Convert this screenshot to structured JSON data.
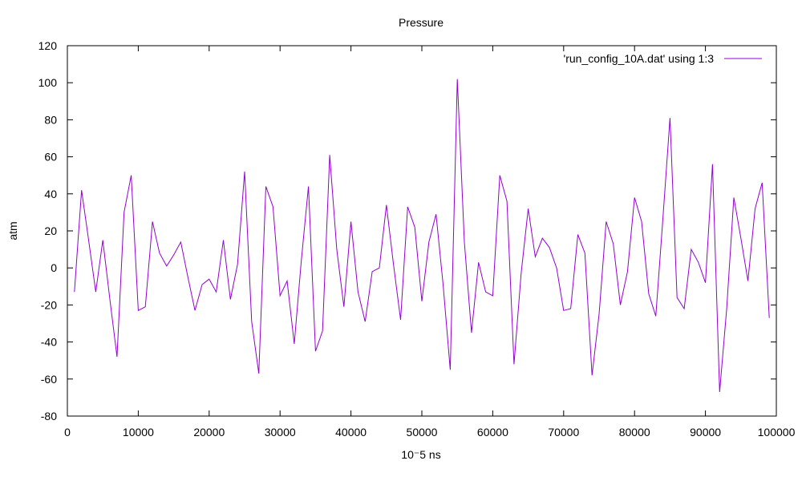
{
  "chart_data": {
    "type": "line",
    "title": "Pressure",
    "xlabel": "10⁻5 ns",
    "ylabel": "atm",
    "xlim": [
      0,
      100000
    ],
    "ylim": [
      -80,
      120
    ],
    "xticks": [
      0,
      10000,
      20000,
      30000,
      40000,
      50000,
      60000,
      70000,
      80000,
      90000,
      100000
    ],
    "yticks": [
      -80,
      -60,
      -40,
      -20,
      0,
      20,
      40,
      60,
      80,
      100,
      120
    ],
    "grid": false,
    "legend_position": "top-right",
    "series": [
      {
        "name": "'run_config_10A.dat' using 1:3",
        "color": "#9400d3",
        "x": [
          1000,
          2000,
          3000,
          4000,
          5000,
          6000,
          7000,
          8000,
          9000,
          10000,
          11000,
          12000,
          13000,
          14000,
          15000,
          16000,
          17000,
          18000,
          19000,
          20000,
          21000,
          22000,
          23000,
          24000,
          25000,
          26000,
          27000,
          28000,
          29000,
          30000,
          31000,
          32000,
          33000,
          34000,
          35000,
          36000,
          37000,
          38000,
          39000,
          40000,
          41000,
          42000,
          43000,
          44000,
          45000,
          46000,
          47000,
          48000,
          49000,
          50000,
          51000,
          52000,
          53000,
          54000,
          55000,
          56000,
          57000,
          58000,
          59000,
          60000,
          61000,
          62000,
          63000,
          64000,
          65000,
          66000,
          67000,
          68000,
          69000,
          70000,
          71000,
          72000,
          73000,
          74000,
          75000,
          76000,
          77000,
          78000,
          79000,
          80000,
          81000,
          82000,
          83000,
          84000,
          85000,
          86000,
          87000,
          88000,
          89000,
          90000,
          91000,
          92000,
          93000,
          94000,
          95000,
          96000,
          97000,
          98000,
          99000
        ],
        "y": [
          -13,
          42,
          15,
          -13,
          15,
          -17,
          -48,
          30,
          50,
          -23,
          -21,
          25,
          8,
          1,
          7,
          14,
          -5,
          -23,
          -9,
          -6,
          -13,
          15,
          -17,
          2,
          52,
          -29,
          -57,
          44,
          33,
          -15,
          -7,
          -41,
          4,
          44,
          -45,
          -34,
          61,
          10,
          -21,
          25,
          -13,
          -29,
          -2,
          0,
          34,
          2,
          -28,
          33,
          22,
          -18,
          14,
          29,
          -9,
          -55,
          102,
          14,
          -35,
          3,
          -13,
          -15,
          50,
          36,
          -52,
          -3,
          32,
          6,
          16,
          11,
          0,
          -23,
          -22,
          18,
          8,
          -58,
          -25,
          25,
          13,
          -20,
          -2,
          38,
          25,
          -14,
          -26,
          27,
          81,
          -16,
          -22,
          10,
          3,
          -8,
          56,
          -67,
          -22,
          38,
          16,
          -7,
          32,
          46,
          -27
        ]
      }
    ]
  }
}
